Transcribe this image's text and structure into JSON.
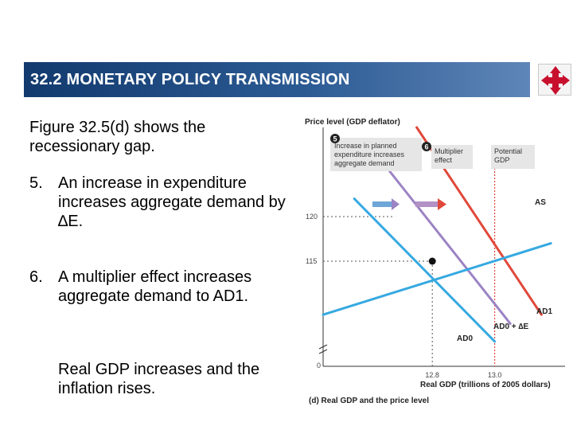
{
  "header": {
    "title": "32.2  MONETARY POLICY TRANSMISSION"
  },
  "nav": {
    "icon": "four-way-arrows-icon"
  },
  "content": {
    "intro": "Figure 32.5(d) shows the recessionary gap.",
    "items": [
      {
        "number": "5.",
        "text": "An increase in expenditure increases aggregate demand by ∆E."
      },
      {
        "number": "6.",
        "text": "A multiplier effect increases aggregate demand to AD1."
      }
    ],
    "outro": "Real GDP increases and the inflation rises."
  },
  "chart_data": {
    "type": "line",
    "ylabel": "Price level (GDP deflator)",
    "xlabel": "Real GDP (trillions of 2005 dollars)",
    "caption": "(d) Real GDP and the price level",
    "x_tick_labels": [
      "0",
      "12.8",
      "13.0"
    ],
    "y_tick_labels": [
      "115",
      "120"
    ],
    "series": [
      {
        "name": "AS",
        "color": "#e0483a",
        "points": [
          [
            12.75,
            130
          ],
          [
            13.15,
            109
          ]
        ]
      },
      {
        "name": "AD0",
        "color": "#36a9e1",
        "points": [
          [
            12.55,
            122
          ],
          [
            13.0,
            106
          ]
        ]
      },
      {
        "name": "AD0 + ∆E",
        "color": "#9c83c4",
        "points": [
          [
            12.62,
            127
          ],
          [
            13.05,
            108
          ]
        ]
      },
      {
        "name": "AD1",
        "color": "#36a9e1",
        "points": [
          [
            12.45,
            109
          ],
          [
            13.18,
            117
          ]
        ]
      }
    ],
    "equilibrium": {
      "x": 12.8,
      "y": 115
    },
    "potential_gdp": 13.0,
    "callouts": [
      {
        "number": "5",
        "text": [
          "Increase in planned",
          "expenditure increases",
          "aggregate demand"
        ]
      },
      {
        "number": "6",
        "text": [
          "Multiplier",
          "effect"
        ]
      },
      {
        "text": [
          "Potential",
          "GDP"
        ]
      }
    ],
    "colors": {
      "as": "#e0483a",
      "ad": "#36a9e1",
      "shift": "#9c83c4",
      "label_box": "#e6e6e6"
    }
  }
}
